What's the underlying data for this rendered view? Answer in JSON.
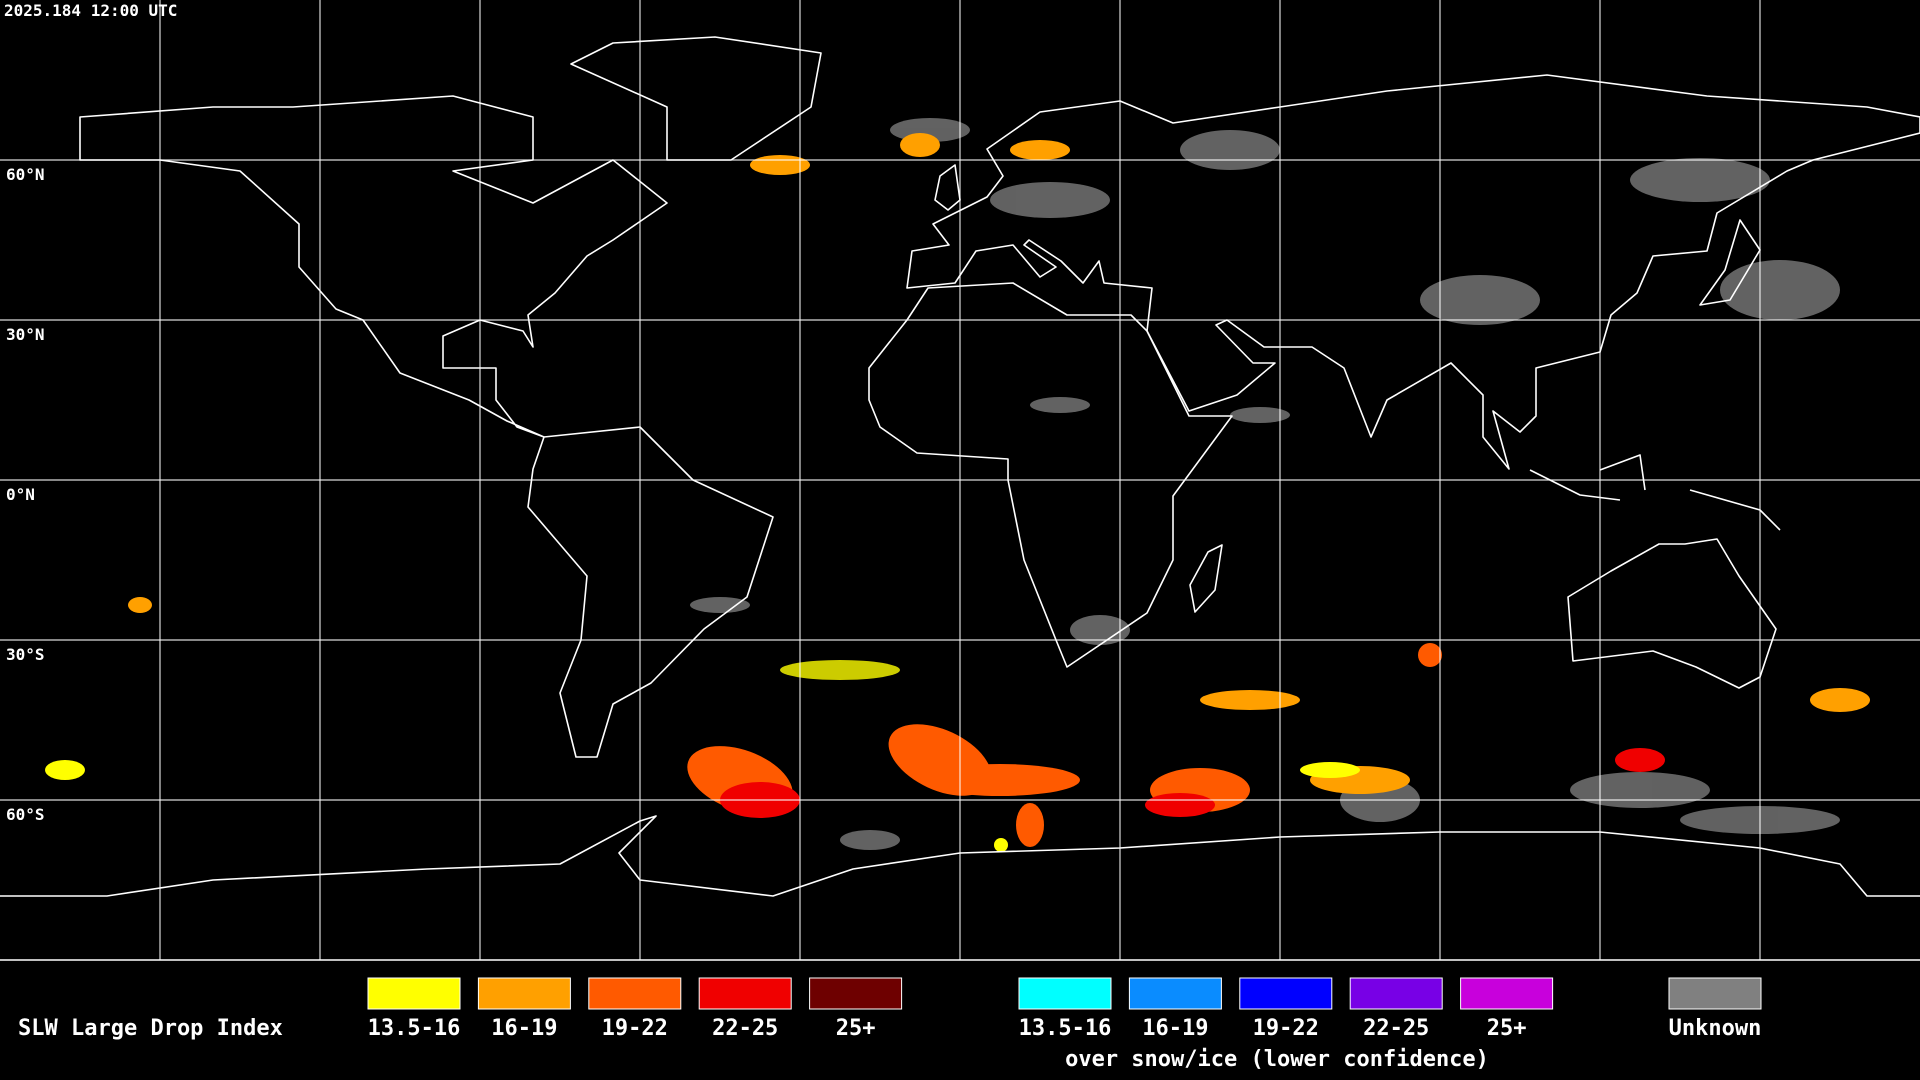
{
  "header": {
    "timestamp": "2025.184 12:00 UTC"
  },
  "map": {
    "lat_labels": [
      "60°N",
      "30°N",
      "0°N",
      "30°S",
      "60°S"
    ]
  },
  "legend": {
    "title": "SLW Large Drop Index",
    "normal": [
      {
        "label": "13.5-16",
        "color": "#ffff00"
      },
      {
        "label": "16-19",
        "color": "#ffa000"
      },
      {
        "label": "19-22",
        "color": "#ff5a00"
      },
      {
        "label": "22-25",
        "color": "#f00000"
      },
      {
        "label": "25+",
        "color": "#6e0000"
      }
    ],
    "snow_ice": [
      {
        "label": "13.5-16",
        "color": "#00ffff"
      },
      {
        "label": "16-19",
        "color": "#0a8cff"
      },
      {
        "label": "19-22",
        "color": "#0000ff"
      },
      {
        "label": "22-25",
        "color": "#7800e6"
      },
      {
        "label": "25+",
        "color": "#c800dc"
      }
    ],
    "snow_ice_note": "over snow/ice (lower confidence)",
    "unknown": {
      "label": "Unknown",
      "color": "#808080"
    }
  }
}
